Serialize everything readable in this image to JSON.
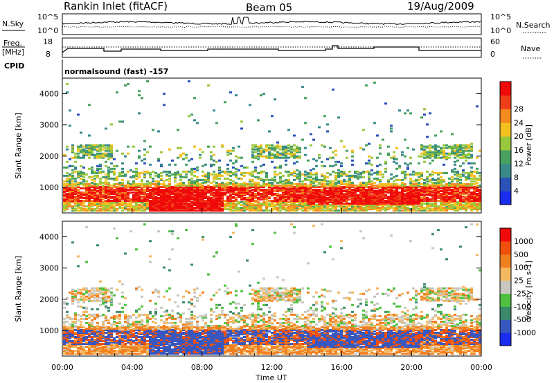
{
  "header": {
    "title": "Rankin Inlet (fitACF)",
    "beam": "Beam 05",
    "date": "19/Aug/2009"
  },
  "panels": {
    "nsky": {
      "left_label": "N.Sky",
      "left_ticks": [
        "10^5",
        "10^0"
      ],
      "right_ticks": [
        "10^5",
        "10^0"
      ],
      "right_label": "N.Search"
    },
    "freq": {
      "left_label": "Freq.",
      "left_unit": "[MHz]",
      "left_ticks": [
        "18",
        "8"
      ],
      "right_ticks": [
        "60",
        "0"
      ],
      "right_label": "Nave"
    },
    "cpid": {
      "label": "CPID",
      "value": "normalsound (fast) -157"
    }
  },
  "chart_data": [
    {
      "type": "heatmap",
      "name": "power",
      "ylabel": "Slant Range [km]",
      "yticks": [
        1000,
        2000,
        3000,
        4000
      ],
      "ylim": [
        180,
        4500
      ],
      "colorbar": {
        "label": "Power [dB]",
        "ticks": [
          "4",
          "8",
          "12",
          "16",
          "20",
          "24",
          "28"
        ],
        "colors": [
          "#1a2cf0",
          "#2a52b8",
          "#3a8a8a",
          "#48a060",
          "#9ac83c",
          "#f4c020",
          "#f48a20",
          "#f03e18",
          "#f00a0a"
        ]
      },
      "bands": [
        {
          "y0": 800,
          "y1": 1100,
          "intensity": 0.95
        },
        {
          "y0": 450,
          "y1": 800,
          "intensity": 0.85
        },
        {
          "y0": 1100,
          "y1": 1450,
          "intensity": 0.55
        },
        {
          "y0": 1900,
          "y1": 2300,
          "intensity": 0.45
        }
      ]
    },
    {
      "type": "heatmap",
      "name": "velocity",
      "ylabel": "Slant Range [km]",
      "yticks": [
        1000,
        2000,
        3000,
        4000
      ],
      "ylim": [
        180,
        4500
      ],
      "colorbar": {
        "label": "Velocity [m s-1]",
        "ticks": [
          "1000",
          "500",
          "100",
          "25",
          "-25",
          "-100",
          "-500",
          "-1000"
        ],
        "colors": [
          "#1a2cf0",
          "#3858c0",
          "#3a8a6a",
          "#50c040",
          "#c8c8c0",
          "#f4b860",
          "#f08020",
          "#f0500c",
          "#f00a0a"
        ]
      }
    }
  ],
  "xaxis": {
    "label": "Time UT",
    "ticks": [
      "00:00",
      "04:00",
      "08:00",
      "12:00",
      "16:00",
      "20:00",
      "00:00"
    ]
  }
}
